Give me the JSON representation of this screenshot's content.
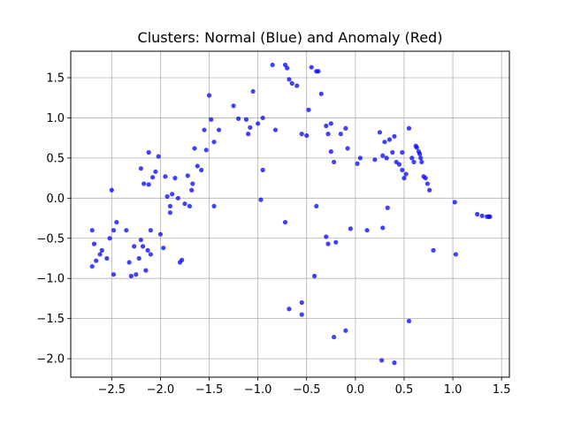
{
  "chart_data": {
    "type": "scatter",
    "title": "Clusters: Normal (Blue) and Anomaly (Red)",
    "xlabel": "",
    "ylabel": "",
    "xlim": [
      -2.92,
      1.58
    ],
    "ylim": [
      -2.23,
      1.83
    ],
    "grid": true,
    "xticks": [
      -2.5,
      -2.0,
      -1.5,
      -1.0,
      -0.5,
      0.0,
      0.5,
      1.0,
      1.5
    ],
    "yticks": [
      -2.0,
      -1.5,
      -1.0,
      -0.5,
      0.0,
      0.5,
      1.0,
      1.5
    ],
    "series": [
      {
        "color": "#0000ff",
        "points": [
          [
            -2.7,
            -0.85
          ],
          [
            -2.66,
            -0.78
          ],
          [
            -2.62,
            -0.7
          ],
          [
            -2.6,
            -0.65
          ],
          [
            -2.55,
            -0.75
          ],
          [
            -2.68,
            -0.57
          ],
          [
            -2.7,
            -0.4
          ],
          [
            -2.52,
            -0.5
          ],
          [
            -2.48,
            -0.4
          ],
          [
            -2.45,
            -0.3
          ],
          [
            -2.48,
            -0.95
          ],
          [
            -2.5,
            0.1
          ],
          [
            -2.35,
            -0.4
          ],
          [
            -2.32,
            -0.8
          ],
          [
            -2.3,
            -0.97
          ],
          [
            -2.27,
            -0.6
          ],
          [
            -2.25,
            -0.95
          ],
          [
            -2.22,
            -0.75
          ],
          [
            -2.2,
            -0.52
          ],
          [
            -2.18,
            -0.6
          ],
          [
            -2.15,
            -0.9
          ],
          [
            -2.13,
            -0.65
          ],
          [
            -2.1,
            -0.7
          ],
          [
            -2.1,
            -0.4
          ],
          [
            -2.2,
            0.37
          ],
          [
            -2.17,
            0.18
          ],
          [
            -2.12,
            0.17
          ],
          [
            -2.12,
            0.57
          ],
          [
            -2.08,
            0.26
          ],
          [
            -2.05,
            0.33
          ],
          [
            -2.02,
            0.52
          ],
          [
            -2.0,
            -0.45
          ],
          [
            -1.97,
            -0.62
          ],
          [
            -1.95,
            0.27
          ],
          [
            -1.93,
            0.02
          ],
          [
            -1.9,
            -0.1
          ],
          [
            -1.9,
            -0.18
          ],
          [
            -1.88,
            0.05
          ],
          [
            -1.85,
            0.25
          ],
          [
            -1.82,
            0.0
          ],
          [
            -1.8,
            -0.8
          ],
          [
            -1.78,
            -0.77
          ],
          [
            -1.75,
            -0.07
          ],
          [
            -1.72,
            0.28
          ],
          [
            -1.7,
            -0.1
          ],
          [
            -1.68,
            0.1
          ],
          [
            -1.67,
            0.18
          ],
          [
            -1.65,
            0.62
          ],
          [
            -1.62,
            0.4
          ],
          [
            -1.58,
            0.35
          ],
          [
            -1.55,
            0.85
          ],
          [
            -1.53,
            0.6
          ],
          [
            -1.5,
            1.28
          ],
          [
            -1.48,
            0.98
          ],
          [
            -1.45,
            -0.1
          ],
          [
            -1.45,
            0.7
          ],
          [
            -1.4,
            0.85
          ],
          [
            -1.25,
            1.15
          ],
          [
            -1.2,
            0.99
          ],
          [
            -1.12,
            0.98
          ],
          [
            -1.1,
            0.8
          ],
          [
            -1.08,
            0.88
          ],
          [
            -1.05,
            1.33
          ],
          [
            -1.0,
            0.93
          ],
          [
            -0.95,
            0.35
          ],
          [
            -0.97,
            -0.02
          ],
          [
            -0.95,
            1.0
          ],
          [
            -0.85,
            1.66
          ],
          [
            -0.82,
            0.85
          ],
          [
            -0.72,
            1.66
          ],
          [
            -0.7,
            1.62
          ],
          [
            -0.68,
            1.48
          ],
          [
            -0.65,
            1.43
          ],
          [
            -0.6,
            1.4
          ],
          [
            -0.55,
            0.8
          ],
          [
            -0.5,
            0.78
          ],
          [
            -0.48,
            1.1
          ],
          [
            -0.45,
            1.63
          ],
          [
            -0.4,
            1.58
          ],
          [
            -0.38,
            1.58
          ],
          [
            -0.35,
            1.3
          ],
          [
            -0.3,
            0.9
          ],
          [
            -0.28,
            0.8
          ],
          [
            -0.25,
            0.58
          ],
          [
            -0.25,
            0.93
          ],
          [
            -0.22,
            0.45
          ],
          [
            -0.15,
            0.8
          ],
          [
            -0.1,
            0.87
          ],
          [
            -0.08,
            0.62
          ],
          [
            -0.05,
            -0.38
          ],
          [
            -0.72,
            -0.3
          ],
          [
            -0.4,
            -0.1
          ],
          [
            -0.55,
            -1.3
          ],
          [
            -0.55,
            -1.45
          ],
          [
            -0.68,
            -1.38
          ],
          [
            -0.42,
            -0.97
          ],
          [
            -0.3,
            -0.48
          ],
          [
            -0.28,
            -0.57
          ],
          [
            -0.2,
            -0.55
          ],
          [
            -0.22,
            -1.73
          ],
          [
            -0.1,
            -1.65
          ],
          [
            0.02,
            0.43
          ],
          [
            0.05,
            0.5
          ],
          [
            0.12,
            -0.4
          ],
          [
            0.2,
            0.48
          ],
          [
            0.25,
            0.82
          ],
          [
            0.28,
            0.53
          ],
          [
            0.3,
            0.7
          ],
          [
            0.32,
            0.5
          ],
          [
            0.35,
            0.73
          ],
          [
            0.38,
            0.57
          ],
          [
            0.4,
            0.77
          ],
          [
            0.42,
            0.45
          ],
          [
            0.45,
            0.42
          ],
          [
            0.48,
            0.57
          ],
          [
            0.48,
            0.35
          ],
          [
            0.5,
            0.25
          ],
          [
            0.52,
            0.3
          ],
          [
            0.55,
            0.87
          ],
          [
            0.58,
            0.5
          ],
          [
            0.6,
            0.45
          ],
          [
            0.62,
            0.65
          ],
          [
            0.63,
            0.63
          ],
          [
            0.65,
            0.58
          ],
          [
            0.66,
            0.55
          ],
          [
            0.67,
            0.5
          ],
          [
            0.68,
            0.45
          ],
          [
            0.7,
            0.27
          ],
          [
            0.72,
            0.25
          ],
          [
            0.74,
            0.18
          ],
          [
            0.76,
            0.1
          ],
          [
            0.33,
            -0.12
          ],
          [
            0.28,
            -0.37
          ],
          [
            0.55,
            -1.53
          ],
          [
            0.8,
            -0.65
          ],
          [
            0.27,
            -2.02
          ],
          [
            0.4,
            -2.05
          ],
          [
            1.02,
            -0.05
          ],
          [
            1.03,
            -0.7
          ],
          [
            1.25,
            -0.2
          ],
          [
            1.3,
            -0.22
          ],
          [
            1.35,
            -0.23
          ],
          [
            1.37,
            -0.23
          ],
          [
            1.38,
            -0.23
          ]
        ]
      }
    ]
  }
}
